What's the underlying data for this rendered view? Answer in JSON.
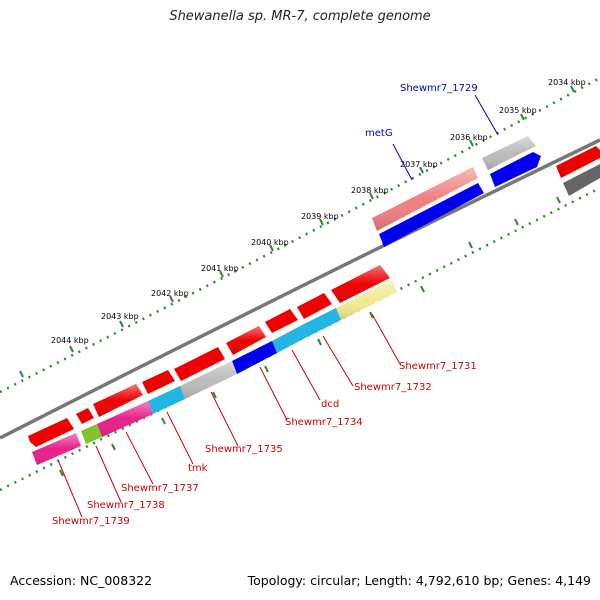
{
  "header": {
    "title": "Shewanella sp. MR-7, complete genome"
  },
  "footer": {
    "accession": "Accession: NC_008322",
    "topology": "Topology: circular; Length: 4,792,610 bp; Genes: 4,149"
  },
  "colors": {
    "backbone": "#777777",
    "tick": "#2e8b2e",
    "kbp_label": "#000000",
    "label_blue": "#0000cc",
    "label_red": "#cc0000",
    "red": "#ee0000",
    "pink": "#f08080",
    "blue": "#0000ee",
    "grey": "#bbbbbb",
    "dark_grey": "#666666",
    "magenta": "#e8208a",
    "cyan": "#22b5e5",
    "yellow": "#f0ea90",
    "green": "#7fc22b"
  },
  "kbp_labels": [
    "2034 kbp",
    "2035 kbp",
    "2036 kbp",
    "2037 kbp",
    "2038 kbp",
    "2039 kbp",
    "2040 kbp",
    "2041 kbp",
    "2042 kbp",
    "2043 kbp",
    "2044 kbp"
  ],
  "gene_labels": [
    "Shewmr7_1729",
    "metG",
    "Shewmr7_1731",
    "Shewmr7_1732",
    "dcd",
    "Shewmr7_1734",
    "Shewmr7_1735",
    "tmk",
    "Shewmr7_1737",
    "Shewmr7_1738",
    "Shewmr7_1739"
  ]
}
